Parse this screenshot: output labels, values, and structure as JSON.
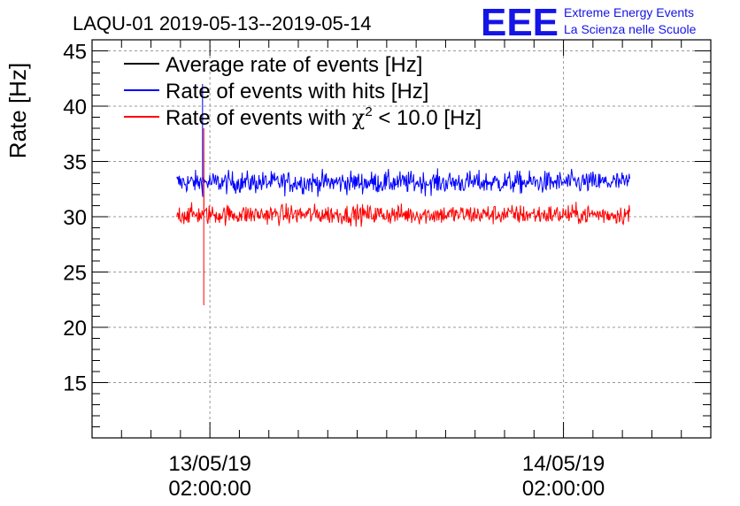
{
  "logo": {
    "text": "EEE",
    "line1": "Extreme Energy Events",
    "line2": "La Scienza nelle Scuole",
    "color": "#1414e6"
  },
  "chart_data": {
    "type": "line",
    "title": "LAQU-01 2019-05-13--2019-05-14",
    "ylabel": "Rate [Hz]",
    "xlabel": "",
    "ylim": [
      10,
      46
    ],
    "yticks": [
      15,
      20,
      25,
      30,
      35,
      40,
      45
    ],
    "x_ticks": [
      {
        "date": "13/05/19",
        "time": "02:00:00"
      },
      {
        "date": "14/05/19",
        "time": "02:00:00"
      }
    ],
    "grid": true,
    "legend_position": "top-left",
    "series": [
      {
        "name": "Average rate of events [Hz]",
        "color": "#000000",
        "values": []
      },
      {
        "name": "Rate of events with hits [Hz]",
        "name_parts": [
          "Rate of events with hits [Hz]"
        ],
        "color": "#0000ff",
        "start": "2019-05-12 23:45",
        "end": "2019-05-14 06:30",
        "mean": 33.1,
        "spread": 0.9,
        "min": 31.5,
        "max": 35.5,
        "spike": {
          "time": "2019-05-13 01:30",
          "value": 42.0
        }
      },
      {
        "name": "Rate of events with χ2 < 10.0 [Hz]",
        "name_parts": [
          "Rate of events with ",
          "χ",
          "2",
          " < 10.0 [Hz]"
        ],
        "color": "#ff0000",
        "start": "2019-05-12 23:45",
        "end": "2019-05-14 06:30",
        "mean": 30.2,
        "spread": 0.8,
        "min": 28.5,
        "max": 32.5,
        "spike": {
          "time": "2019-05-13 01:35",
          "value": 38.0,
          "dip": 22.0
        }
      }
    ]
  }
}
